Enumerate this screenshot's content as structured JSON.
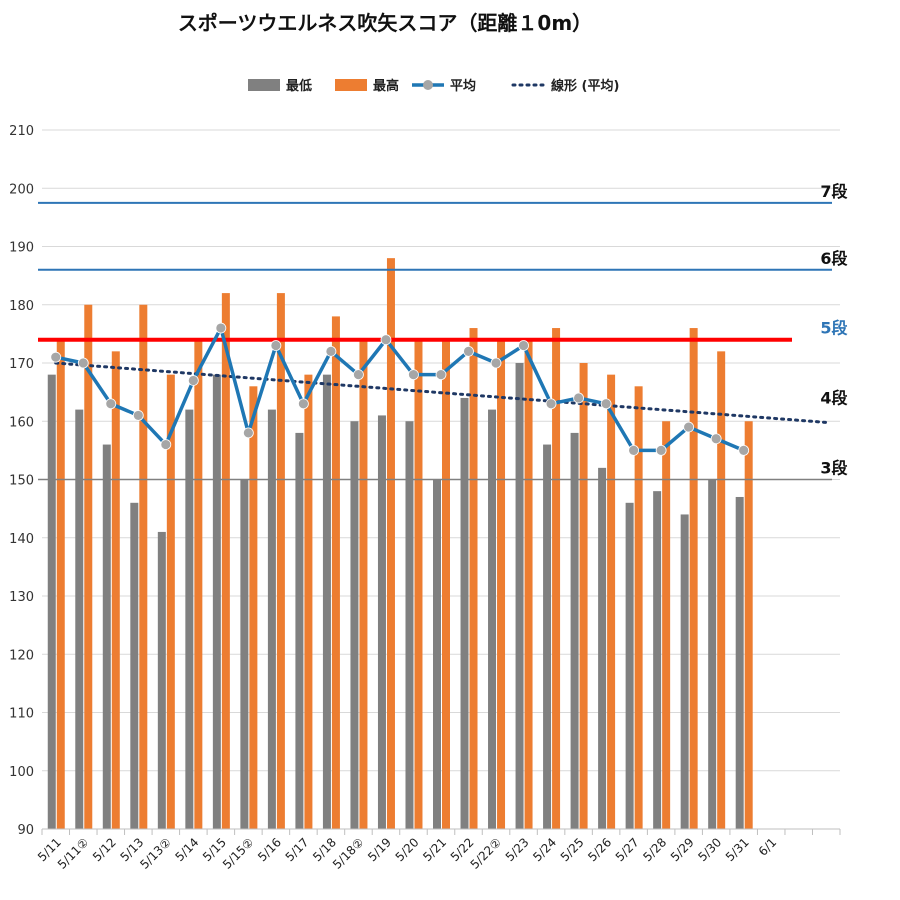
{
  "chart_data": {
    "type": "bar",
    "title": "スポーツウエルネス吹矢スコア（距離１0m）",
    "xlabel": "",
    "ylabel": "",
    "ylim": [
      90,
      210
    ],
    "yticks": [
      90,
      100,
      110,
      120,
      130,
      140,
      150,
      160,
      170,
      180,
      190,
      200,
      210
    ],
    "grid": true,
    "legend_position": "top",
    "categories": [
      "5/11",
      "5/11②",
      "5/12",
      "5/13",
      "5/13②",
      "5/14",
      "5/15",
      "5/15②",
      "5/16",
      "5/17",
      "5/18",
      "5/18②",
      "5/19",
      "5/20",
      "5/21",
      "5/22",
      "5/22②",
      "5/23",
      "5/24",
      "5/25",
      "5/26",
      "5/27",
      "5/28",
      "5/29",
      "5/30",
      "5/31",
      "6/1"
    ],
    "series": [
      {
        "name": "最低",
        "kind": "bar",
        "color": "#808080",
        "values": [
          168,
          162,
          156,
          146,
          141,
          162,
          168,
          150,
          162,
          158,
          168,
          160,
          161,
          160,
          150,
          164,
          162,
          170,
          156,
          158,
          152,
          146,
          148,
          144,
          150,
          147,
          null
        ]
      },
      {
        "name": "最高",
        "kind": "bar",
        "color": "#ED7D31",
        "values": [
          174,
          180,
          172,
          180,
          168,
          174,
          182,
          166,
          182,
          168,
          178,
          174,
          188,
          174,
          174,
          176,
          174,
          174,
          176,
          170,
          168,
          166,
          160,
          176,
          172,
          160,
          null
        ]
      },
      {
        "name": "平均",
        "kind": "line",
        "color": "#1F77B4",
        "marker_color": "#A6A6A6",
        "values": [
          171,
          170,
          163,
          161,
          156,
          167,
          176,
          158,
          173,
          163,
          172,
          168,
          174,
          168,
          168,
          172,
          170,
          173,
          163,
          164,
          163,
          155,
          155,
          159,
          157,
          155,
          null
        ]
      },
      {
        "name": "線形 (平均)",
        "kind": "trendline",
        "color": "#1F3864",
        "from": [
          0,
          170
        ],
        "to": [
          28.5,
          159.8
        ]
      }
    ],
    "reference_lines": [
      {
        "label": "7段",
        "value": 197.5,
        "color": "#2E75B6",
        "label_color": "#111111"
      },
      {
        "label": "6段",
        "value": 186,
        "color": "#2E75B6",
        "label_color": "#111111"
      },
      {
        "label": "5段",
        "value": 174,
        "color": "#FF0000",
        "label_color": "#2E75B6"
      },
      {
        "label": "4段",
        "value": 162,
        "color": null,
        "label_color": "#111111"
      },
      {
        "label": "3段",
        "value": 150,
        "color": "#808080",
        "label_color": "#111111"
      }
    ]
  }
}
